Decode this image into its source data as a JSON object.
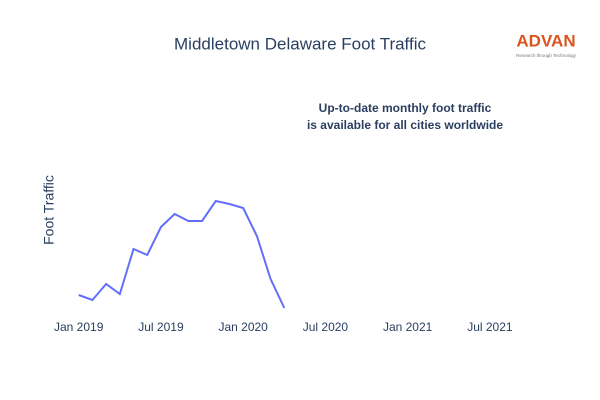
{
  "chart_data": {
    "type": "line",
    "title": "Middletown Delaware Foot Traffic",
    "ylabel": "Foot Traffic",
    "annotation": [
      "Up-to-date monthly foot traffic",
      "is available for all cities worldwide"
    ],
    "logo": {
      "name": "ADVAN",
      "tagline": "Research through Technology"
    },
    "x": [
      "2019-01",
      "2019-02",
      "2019-03",
      "2019-04",
      "2019-05",
      "2019-06",
      "2019-07",
      "2019-08",
      "2019-09",
      "2019-10",
      "2019-11",
      "2019-12",
      "2020-01",
      "2020-02",
      "2020-03",
      "2020-04"
    ],
    "series": [
      {
        "name": "Foot Traffic",
        "color": "#636efa",
        "values": [
          25,
          20,
          36,
          26,
          71,
          65,
          93,
          106,
          99,
          99,
          119,
          116,
          112,
          84,
          41,
          12
        ]
      }
    ],
    "xlim": [
      "2018-12",
      "2021-10"
    ],
    "xticks": [
      {
        "value": "2019-01",
        "label": "Jan 2019"
      },
      {
        "value": "2019-07",
        "label": "Jul 2019"
      },
      {
        "value": "2020-01",
        "label": "Jan 2020"
      },
      {
        "value": "2020-07",
        "label": "Jul 2020"
      },
      {
        "value": "2021-01",
        "label": "Jan 2021"
      },
      {
        "value": "2021-07",
        "label": "Jul 2021"
      }
    ],
    "ylim": [
      0,
      130
    ]
  }
}
